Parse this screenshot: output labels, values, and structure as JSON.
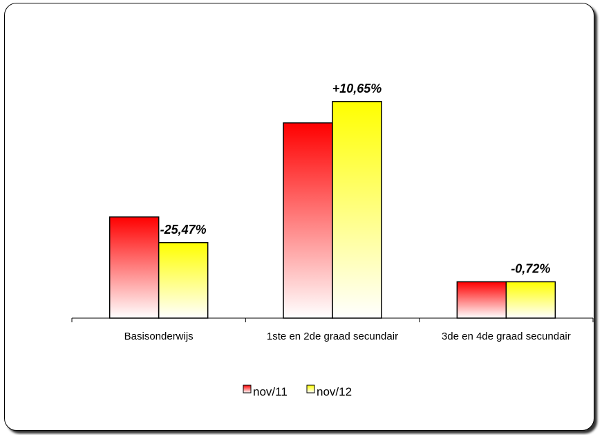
{
  "chart_data": {
    "type": "bar",
    "categories": [
      "Basisonderwijs",
      "1ste en 2de graad secundair",
      "3de en 4de graad secundair"
    ],
    "series": [
      {
        "name": "nov/11",
        "values": [
          142,
          274,
          51
        ],
        "color": "#ff0000"
      },
      {
        "name": "nov/12",
        "values": [
          106,
          304,
          51
        ],
        "color": "#ffff00"
      }
    ],
    "data_labels": [
      "-25,47%",
      "+10,65%",
      "-0,72%"
    ],
    "ylim": [
      0,
      330
    ],
    "grid": false,
    "legend": "bottom-center"
  }
}
